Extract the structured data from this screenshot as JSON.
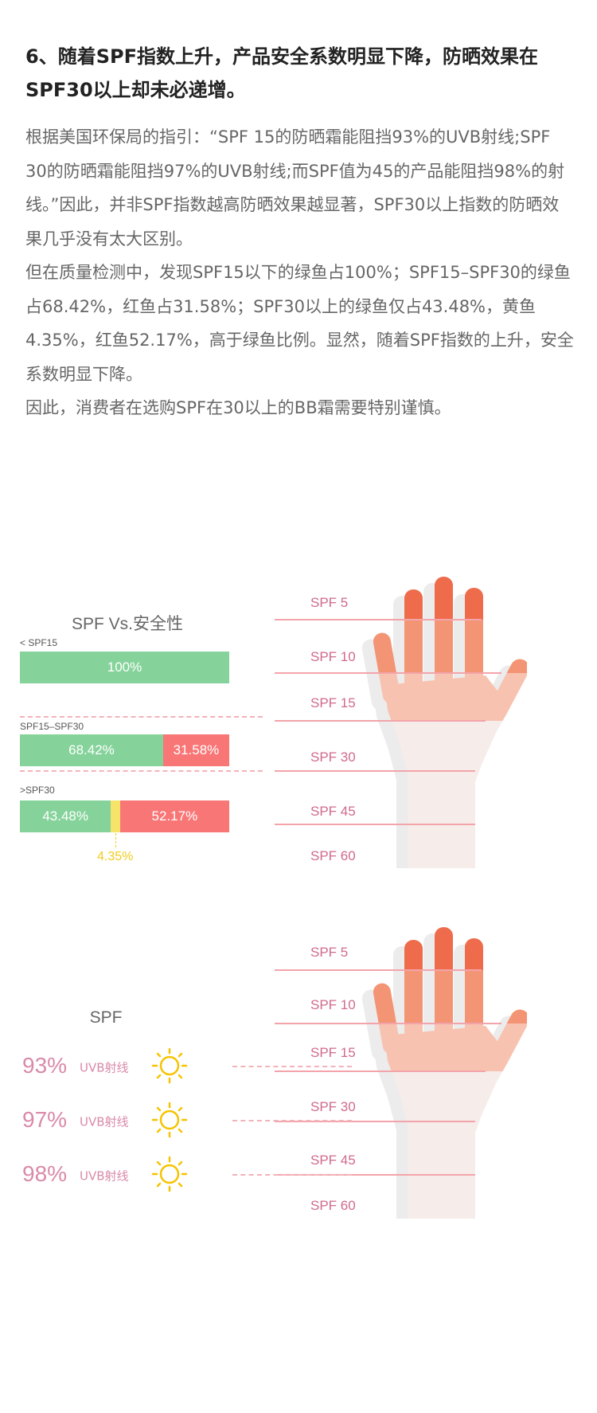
{
  "article": {
    "heading": "6、随着SPF指数上升，产品安全系数明显下降，防晒效果在SPF30以上却未必递增。",
    "paragraphs": [
      "根据美国环保局的指引：“SPF 15的防晒霜能阻挡93%的UVB射线;SPF 30的防晒霜能阻挡97%的UVB射线;而SPF值为45的产品能阻挡98%的射线。”因此，并非SPF指数越高防晒效果越显著，SPF30以上指数的防晒效果几乎没有太大区别。",
      "但在质量检测中，发现SPF15以下的绿鱼占100%；SPF15–SPF30的绿鱼占68.42%，红鱼占31.58%；SPF30以上的绿鱼仅占43.48%，黄鱼4.35%，红鱼52.17%，高于绿鱼比例。显然，随着SPF指数的上升，安全系数明显下降。",
      "因此，消费者在选购SPF在30以上的BB霜需要特别谨慎。"
    ]
  },
  "colors": {
    "green": "#85d39a",
    "red": "#f97676",
    "yellow": "#f5e36a",
    "label_yellow": "#f2cc1c",
    "pink_text": "#d06a8e",
    "sun": "#f5c400"
  },
  "infographic1": {
    "title": "SPF Vs.安全性",
    "groups": [
      {
        "label": "< SPF15",
        "segments": [
          {
            "color": "green",
            "value": 100,
            "text": "100%"
          }
        ]
      },
      {
        "label": "SPF15–SPF30",
        "segments": [
          {
            "color": "green",
            "value": 68.42,
            "text": "68.42%"
          },
          {
            "color": "red",
            "value": 31.58,
            "text": "31.58%"
          }
        ]
      },
      {
        "label": ">SPF30",
        "segments": [
          {
            "color": "green",
            "value": 43.48,
            "text": "43.48%"
          },
          {
            "color": "yellow",
            "value": 4.35,
            "text": ""
          },
          {
            "color": "red",
            "value": 52.17,
            "text": "52.17%"
          }
        ]
      }
    ],
    "yellow_callout": "4.35%",
    "spf_levels": [
      "SPF 5",
      "SPF 10",
      "SPF 15",
      "SPF 30",
      "SPF 45",
      "SPF 60"
    ]
  },
  "infographic2": {
    "title": "SPF",
    "rows": [
      {
        "percent": "93%",
        "label": "UVB射线",
        "icon": "sun-icon"
      },
      {
        "percent": "97%",
        "label": "UVB射线",
        "icon": "sun-icon"
      },
      {
        "percent": "98%",
        "label": "UVB射线",
        "icon": "sun-icon"
      }
    ],
    "spf_levels": [
      "SPF 5",
      "SPF 10",
      "SPF 15",
      "SPF 30",
      "SPF 45",
      "SPF 60"
    ]
  }
}
